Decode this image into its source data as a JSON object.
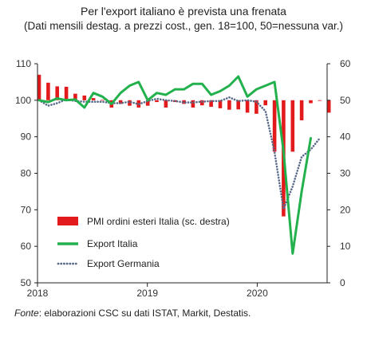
{
  "chart_data": {
    "type": "bar+line",
    "title": "Per l'export italiano è prevista una frenata",
    "subtitle": "(Dati mensili destag. a prezzi cost., gen. 18=100, 50=nessuna var.)",
    "x_ticks": [
      "2018",
      "2019",
      "2020"
    ],
    "y_left": {
      "ylim": [
        50,
        110
      ],
      "ticks": [
        "50",
        "60",
        "70",
        "80",
        "90",
        "100",
        "110"
      ]
    },
    "y_right": {
      "ylim": [
        0,
        60
      ],
      "ticks": [
        "0",
        "10",
        "20",
        "30",
        "40",
        "50",
        "60"
      ]
    },
    "months": [
      "2018-01",
      "2018-02",
      "2018-03",
      "2018-04",
      "2018-05",
      "2018-06",
      "2018-07",
      "2018-08",
      "2018-09",
      "2018-10",
      "2018-11",
      "2018-12",
      "2019-01",
      "2019-02",
      "2019-03",
      "2019-04",
      "2019-05",
      "2019-06",
      "2019-07",
      "2019-08",
      "2019-09",
      "2019-10",
      "2019-11",
      "2019-12",
      "2020-01",
      "2020-02",
      "2020-03",
      "2020-04",
      "2020-05",
      "2020-06",
      "2020-07",
      "2020-08",
      "2020-09"
    ],
    "series": [
      {
        "name": "PMI ordini esteri Italia (sc. destra)",
        "kind": "bar",
        "axis": "right",
        "color": "#e31a1c",
        "values": [
          57,
          54.8,
          53.8,
          53.7,
          51.8,
          51.3,
          50.6,
          50.1,
          48,
          49,
          48.5,
          48,
          48.5,
          49.5,
          48,
          49.5,
          49,
          48,
          48.6,
          48.2,
          47.8,
          47.4,
          47.5,
          46.6,
          46.3,
          48.6,
          35.9,
          18.2,
          35.9,
          44.5,
          49.2,
          50,
          46.6
        ]
      },
      {
        "name": "Export Italia",
        "kind": "line",
        "axis": "left",
        "color": "#22b14c",
        "values": [
          100,
          99.5,
          100.5,
          100,
          100.2,
          98,
          102,
          101,
          99,
          102,
          104,
          105,
          100,
          102,
          101.5,
          103,
          103,
          104.5,
          104.5,
          101.5,
          102.5,
          104,
          106.5,
          101,
          103,
          104,
          105,
          86,
          58,
          75,
          89.6,
          null,
          null
        ]
      },
      {
        "name": "Export Germania",
        "kind": "dotted",
        "axis": "left",
        "color": "#5a6b8a",
        "values": [
          100,
          98.5,
          99.2,
          100.2,
          99.8,
          99.6,
          99.6,
          99.6,
          99.2,
          99.2,
          99.6,
          98.9,
          99.8,
          100.4,
          100,
          99.8,
          99.4,
          99.4,
          99.6,
          99.8,
          99.8,
          100.8,
          99.8,
          100,
          99.6,
          97,
          85.8,
          70.2,
          76.4,
          84.5,
          86.5,
          89.6,
          null
        ]
      }
    ],
    "legend_placement": "bottom-left",
    "grid": false
  },
  "source": {
    "label": "Fonte",
    "text": ": elaborazioni CSC su dati ISTAT, Markit, Destatis."
  }
}
